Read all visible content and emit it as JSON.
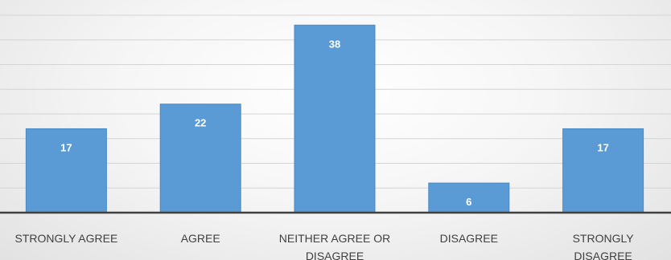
{
  "chart_data": {
    "type": "bar",
    "categories": [
      [
        "STRONGLY AGREE"
      ],
      [
        "AGREE"
      ],
      [
        "NEITHER AGREE OR",
        "DISAGREE"
      ],
      [
        "DISAGREE"
      ],
      [
        "STRONGLY",
        "DISAGREE"
      ]
    ],
    "values": [
      17,
      22,
      38,
      6,
      17
    ],
    "title": "",
    "xlabel": "",
    "ylabel": "",
    "ylim": [
      0,
      40
    ],
    "grid": true,
    "show_data_labels": true,
    "legend": "none",
    "colors": {
      "bar": "#5b9bd5",
      "data_label": "#ffffff",
      "axis": "#404040",
      "grid": "#d4d4d4"
    }
  }
}
